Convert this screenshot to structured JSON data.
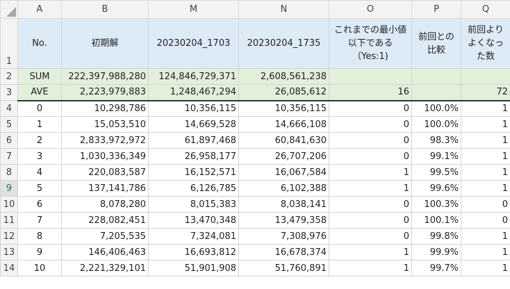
{
  "columns": [
    "A",
    "B",
    "M",
    "N",
    "O",
    "P",
    "Q"
  ],
  "header": {
    "row_label": "1",
    "A": "No.",
    "B": "初期解",
    "M": "20230204_1703",
    "N": "20230204_1735",
    "O": "これまでの最小値以下である（Yes:1)",
    "P": "前回との比較",
    "Q": "前回よりよくなった数"
  },
  "sum": {
    "row_label": "2",
    "A": "SUM",
    "B": "222,397,988,280",
    "M": "124,846,729,371",
    "N": "2,608,561,238",
    "O": "",
    "P": "",
    "Q": ""
  },
  "ave": {
    "row_label": "3",
    "A": "AVE",
    "B": "2,223,979,883",
    "M": "1,248,467,294",
    "N": "26,085,612",
    "O": "16",
    "P": "",
    "Q": "72"
  },
  "rows": [
    {
      "row_label": "4",
      "A": "0",
      "B": "10,298,786",
      "M": "10,356,115",
      "N": "10,356,115",
      "O": "0",
      "P": "100.0%",
      "Q": "1"
    },
    {
      "row_label": "5",
      "A": "1",
      "B": "15,053,510",
      "M": "14,669,528",
      "N": "14,666,108",
      "O": "0",
      "P": "100.0%",
      "Q": "1"
    },
    {
      "row_label": "6",
      "A": "2",
      "B": "2,833,972,972",
      "M": "61,897,468",
      "N": "60,841,630",
      "O": "0",
      "P": "98.3%",
      "Q": "1"
    },
    {
      "row_label": "7",
      "A": "3",
      "B": "1,030,336,349",
      "M": "26,958,177",
      "N": "26,707,206",
      "O": "0",
      "P": "99.1%",
      "Q": "1"
    },
    {
      "row_label": "8",
      "A": "4",
      "B": "220,083,587",
      "M": "16,152,571",
      "N": "16,067,584",
      "O": "1",
      "P": "99.5%",
      "Q": "1"
    },
    {
      "row_label": "9",
      "A": "5",
      "B": "137,141,786",
      "M": "6,126,785",
      "N": "6,102,388",
      "O": "1",
      "P": "99.6%",
      "Q": "1"
    },
    {
      "row_label": "10",
      "A": "6",
      "B": "8,078,280",
      "M": "8,015,383",
      "N": "8,038,141",
      "O": "0",
      "P": "100.3%",
      "Q": "0"
    },
    {
      "row_label": "11",
      "A": "7",
      "B": "228,082,451",
      "M": "13,470,348",
      "N": "13,479,358",
      "O": "0",
      "P": "100.1%",
      "Q": "0"
    },
    {
      "row_label": "12",
      "A": "8",
      "B": "7,205,535",
      "M": "7,324,081",
      "N": "7,308,976",
      "O": "0",
      "P": "99.8%",
      "Q": "1"
    },
    {
      "row_label": "13",
      "A": "9",
      "B": "146,406,463",
      "M": "16,693,812",
      "N": "16,678,374",
      "O": "1",
      "P": "99.9%",
      "Q": "1"
    },
    {
      "row_label": "14",
      "A": "10",
      "B": "2,221,329,101",
      "M": "51,901,908",
      "N": "51,760,891",
      "O": "1",
      "P": "99.7%",
      "Q": "1"
    }
  ],
  "selected_row": "9",
  "colors": {
    "header_fill": "#ddebf7",
    "summary_fill": "#e2efda",
    "select_green": "#217346"
  }
}
